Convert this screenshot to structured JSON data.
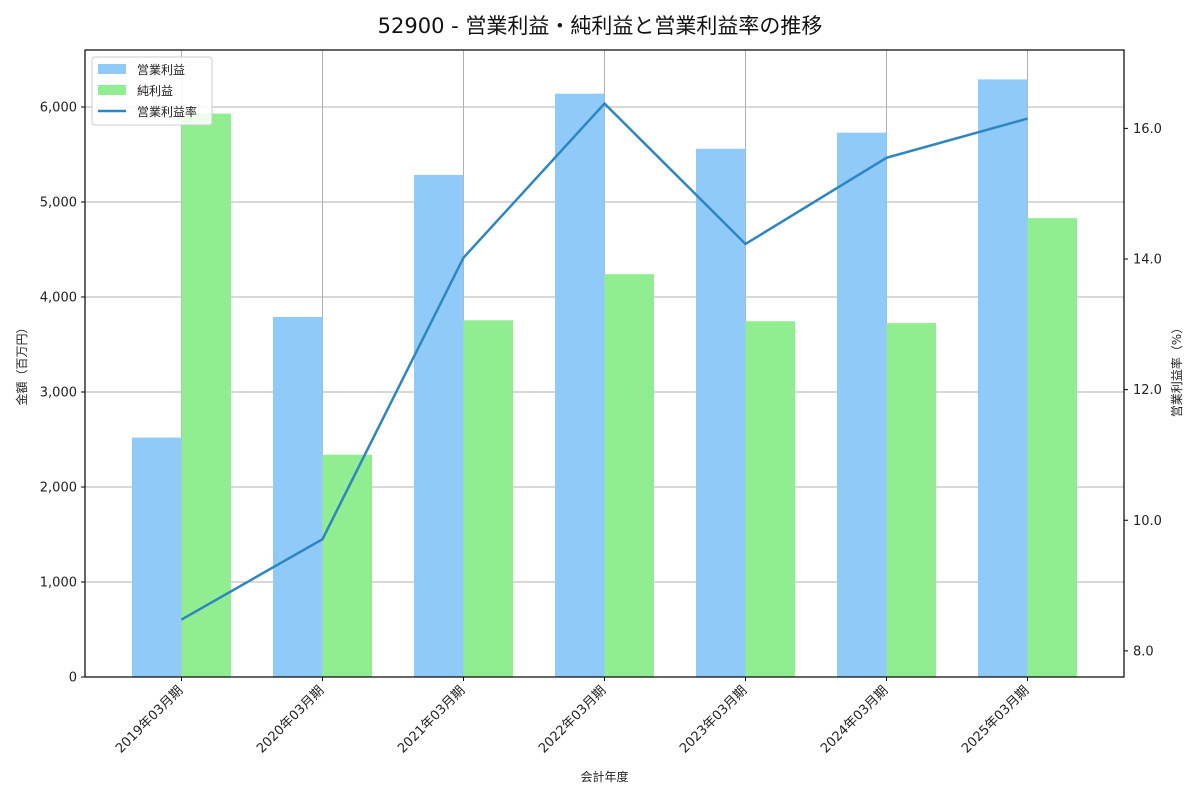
{
  "title": "52900 - 営業利益・純利益と営業利益率の推移",
  "colors": {
    "operating": "#90caf9",
    "net": "#90ee90",
    "margin": "#2e86c1",
    "grid": "#b0b0b0",
    "axis": "#000000"
  },
  "chart_data": {
    "type": "bar",
    "title": "52900 - 営業利益・純利益と営業利益率の推移",
    "xlabel": "会計年度",
    "ylabel": "金額（百万円）",
    "y2label": "営業利益率（%）",
    "categories": [
      "2019年03月期",
      "2020年03月期",
      "2021年03月期",
      "2022年03月期",
      "2023年03月期",
      "2024年03月期",
      "2025年03月期"
    ],
    "series": [
      {
        "name": "営業利益",
        "type": "bar",
        "axis": "left",
        "values": [
          2520,
          3790,
          5285,
          6140,
          5560,
          5730,
          6290
        ]
      },
      {
        "name": "純利益",
        "type": "bar",
        "axis": "left",
        "values": [
          5930,
          2340,
          3755,
          4240,
          3745,
          3725,
          4830
        ]
      },
      {
        "name": "営業利益率",
        "type": "line",
        "axis": "right",
        "values": [
          8.48,
          9.71,
          14.02,
          16.38,
          14.23,
          15.55,
          16.15
        ]
      }
    ],
    "ylim": [
      0,
      6600
    ],
    "y2lim": [
      7.6,
      17.2
    ],
    "yticks": [
      0,
      1000,
      2000,
      3000,
      4000,
      5000,
      6000
    ],
    "ytick_labels": [
      "0",
      "1,000",
      "2,000",
      "3,000",
      "4,000",
      "5,000",
      "6,000"
    ],
    "y2ticks": [
      8.0,
      10.0,
      12.0,
      14.0,
      16.0
    ],
    "y2tick_labels": [
      "8.0",
      "10.0",
      "12.0",
      "14.0",
      "16.0"
    ],
    "grid": true,
    "legend_position": "upper left"
  }
}
